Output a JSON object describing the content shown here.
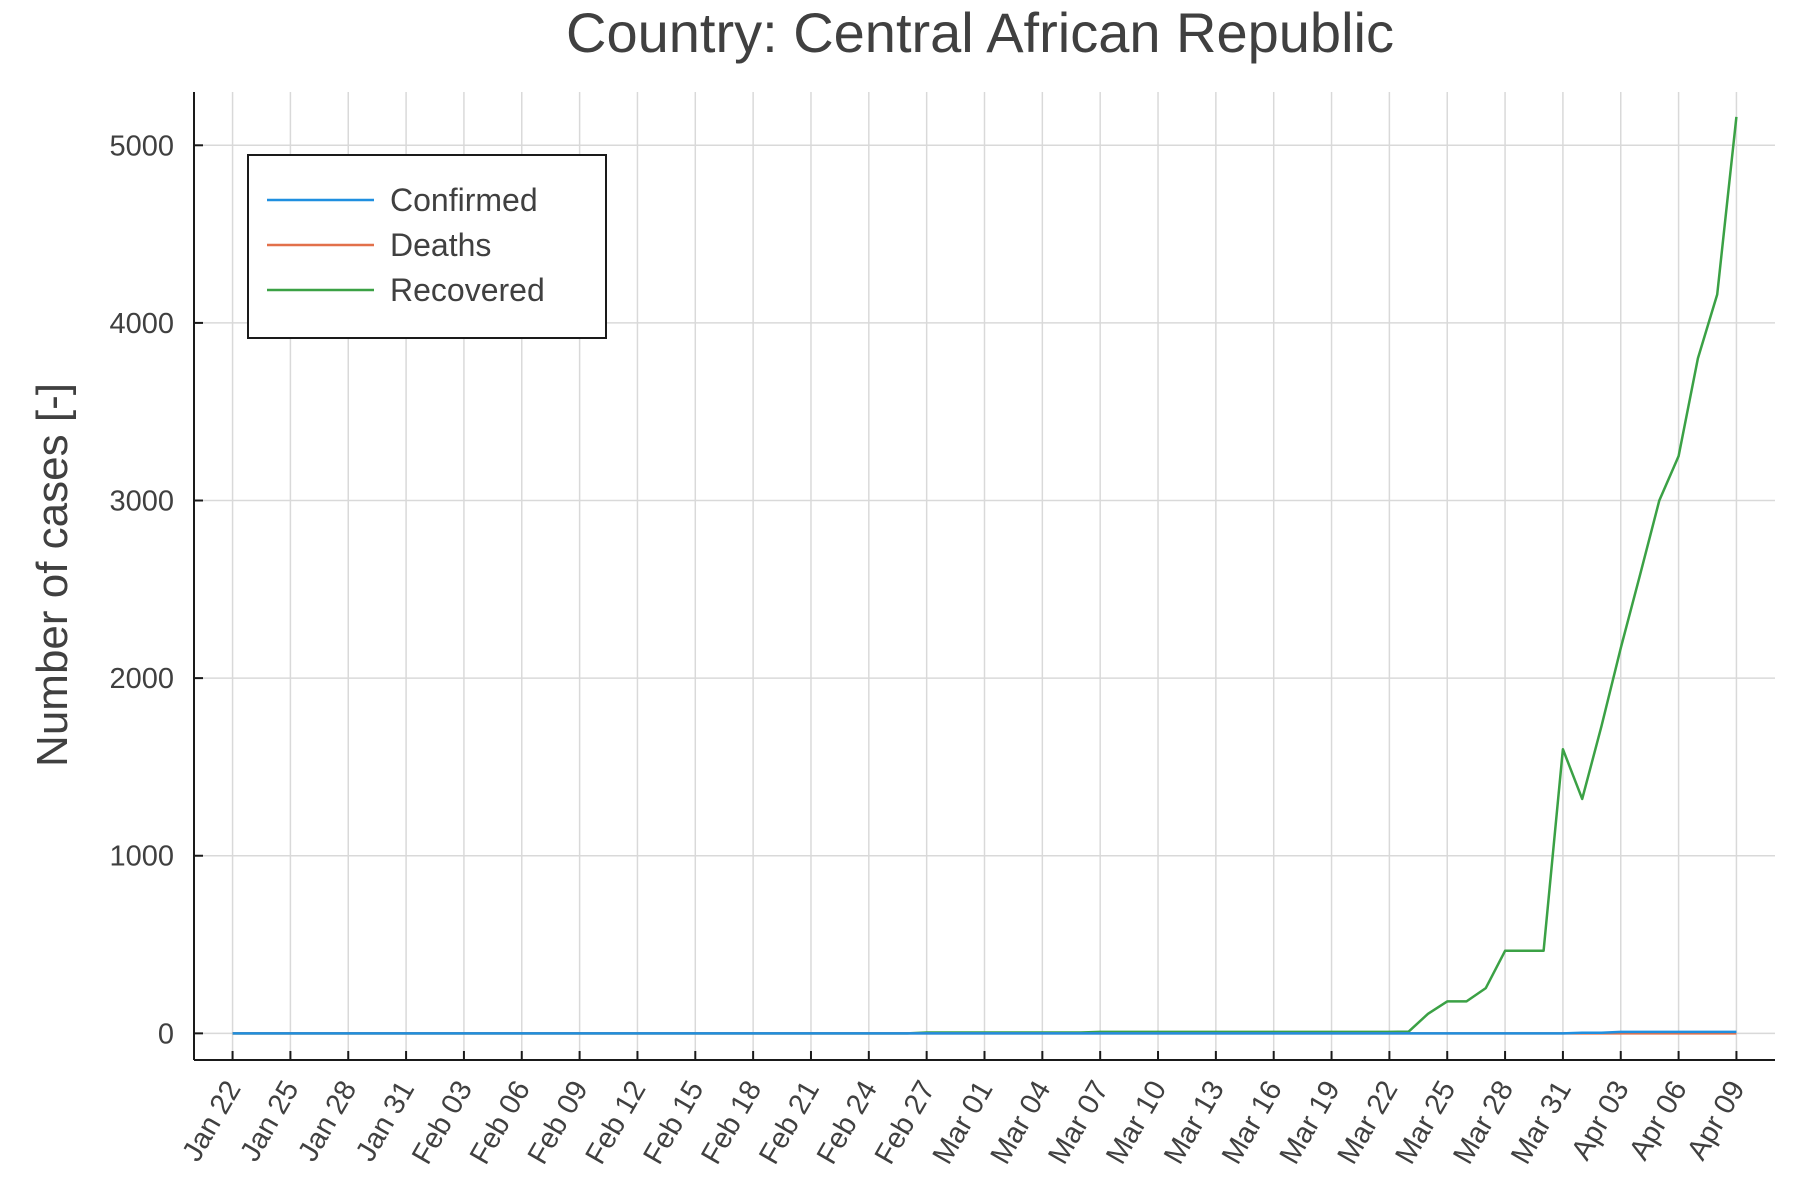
{
  "chart_data": {
    "type": "line",
    "title": "Country: Central African Republic",
    "xlabel": "",
    "ylabel": "Number of cases [-]",
    "x_tick_labels": [
      "Jan 22",
      "Jan 25",
      "Jan 28",
      "Jan 31",
      "Feb 03",
      "Feb 06",
      "Feb 09",
      "Feb 12",
      "Feb 15",
      "Feb 18",
      "Feb 21",
      "Feb 24",
      "Feb 27",
      "Mar 01",
      "Mar 04",
      "Mar 07",
      "Mar 10",
      "Mar 13",
      "Mar 16",
      "Mar 19",
      "Mar 22",
      "Mar 25",
      "Mar 28",
      "Mar 31",
      "Apr 03",
      "Apr 06",
      "Apr 09"
    ],
    "y_ticks": [
      0,
      1000,
      2000,
      3000,
      4000,
      5000
    ],
    "ylim": [
      -150,
      5300
    ],
    "xlim": [
      "Jan 20",
      "Apr 11"
    ],
    "grid": true,
    "legend_position": "top-left",
    "series": [
      {
        "name": "Confirmed",
        "color": "#1f8fe0",
        "points": [
          [
            "Jan 22",
            0
          ],
          [
            "Mar 31",
            0
          ],
          [
            "Apr 01",
            3
          ],
          [
            "Apr 02",
            3
          ],
          [
            "Apr 03",
            8
          ],
          [
            "Apr 04",
            8
          ],
          [
            "Apr 05",
            8
          ],
          [
            "Apr 06",
            8
          ],
          [
            "Apr 07",
            8
          ],
          [
            "Apr 08",
            8
          ],
          [
            "Apr 09",
            8
          ]
        ]
      },
      {
        "name": "Deaths",
        "color": "#e2704a",
        "points": [
          [
            "Jan 22",
            0
          ],
          [
            "Apr 09",
            0
          ]
        ]
      },
      {
        "name": "Recovered",
        "color": "#3ba145",
        "points": [
          [
            "Jan 22",
            0
          ],
          [
            "Feb 26",
            0
          ],
          [
            "Feb 27",
            5
          ],
          [
            "Mar 06",
            5
          ],
          [
            "Mar 07",
            8
          ],
          [
            "Mar 22",
            8
          ],
          [
            "Mar 23",
            10
          ],
          [
            "Mar 24",
            110
          ],
          [
            "Mar 25",
            180
          ],
          [
            "Mar 26",
            180
          ],
          [
            "Mar 27",
            255
          ],
          [
            "Mar 28",
            465
          ],
          [
            "Mar 29",
            465
          ],
          [
            "Mar 30",
            465
          ],
          [
            "Mar 31",
            1600
          ],
          [
            "Apr 01",
            1320
          ],
          [
            "Apr 02",
            1730
          ],
          [
            "Apr 03",
            2170
          ],
          [
            "Apr 04",
            2580
          ],
          [
            "Apr 05",
            3000
          ],
          [
            "Apr 06",
            3250
          ],
          [
            "Apr 07",
            3800
          ],
          [
            "Apr 08",
            4160
          ],
          [
            "Apr 09",
            5160
          ]
        ]
      }
    ]
  }
}
